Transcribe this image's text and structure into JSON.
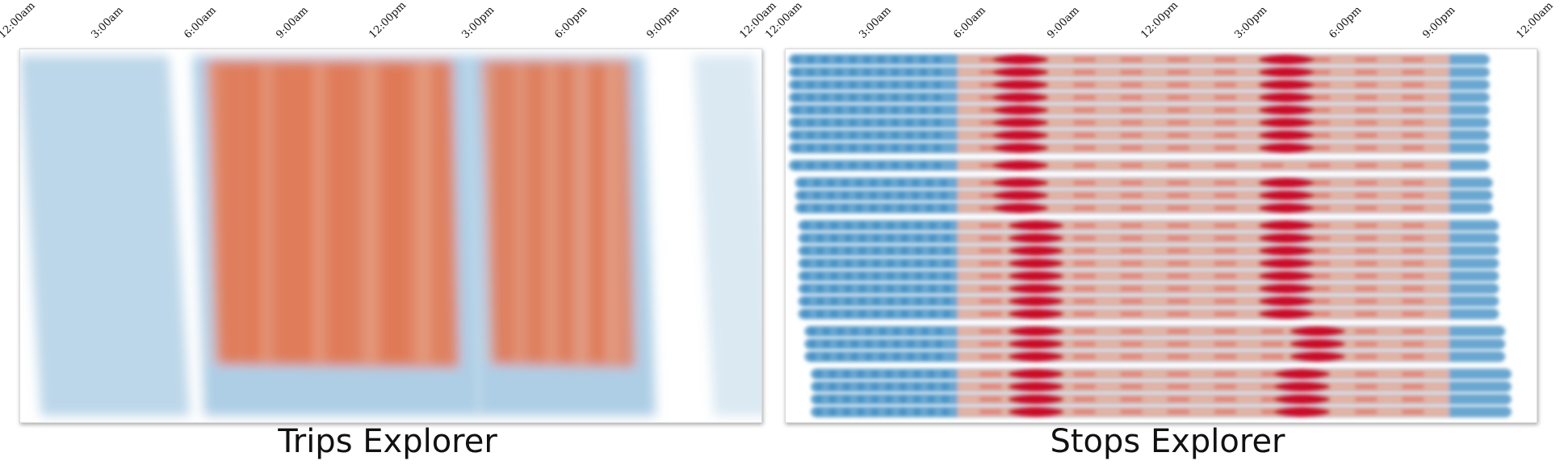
{
  "chart_data": [
    {
      "type": "heatmap",
      "title": "Trips Explorer",
      "x_tick_labels": [
        "12:00am",
        "3:00am",
        "6:00am",
        "9:00am",
        "12:00pm",
        "3:00pm",
        "6:00pm",
        "9:00pm",
        "12:00am"
      ],
      "x_range_hours": [
        0,
        24
      ],
      "color_scale": {
        "low": "#6aa6cf",
        "mid": "#f3f6f9",
        "high": "#e8784f"
      },
      "bands": [
        {
          "start_hour": 0.2,
          "end_hour": 4.6,
          "intensity": -0.45
        },
        {
          "start_hour": 5.8,
          "end_hour": 14.3,
          "intensity": 0.85
        },
        {
          "start_hour": 14.7,
          "end_hour": 20.0,
          "intensity": 0.75
        },
        {
          "start_hour": 22.0,
          "end_hour": 23.6,
          "intensity": -0.25
        }
      ]
    },
    {
      "type": "heatmap",
      "title": "Stops Explorer",
      "x_tick_labels": [
        "12:00am",
        "3:00am",
        "6:00am",
        "9:00am",
        "12:00pm",
        "3:00pm",
        "6:00pm",
        "9:00pm",
        "12:00am"
      ],
      "x_range_hours": [
        0,
        24
      ],
      "color_scale": {
        "low": "#4f97c8",
        "mid": "#f0b5a0",
        "high": "#c8001e"
      },
      "row_groups": [
        {
          "rows": 8,
          "start_hour": 0.1,
          "end_hour": 22.5,
          "peak_hours": [
            7.5,
            16.0
          ]
        },
        {
          "rows": 1,
          "start_hour": 0.1,
          "end_hour": 22.5,
          "peak_hours": [
            7.5
          ]
        },
        {
          "rows": 3,
          "start_hour": 0.3,
          "end_hour": 22.6,
          "peak_hours": [
            7.5,
            16.0
          ]
        },
        {
          "rows": 8,
          "start_hour": 0.4,
          "end_hour": 22.8,
          "peak_hours": [
            8.0,
            16.0
          ]
        },
        {
          "rows": 3,
          "start_hour": 0.6,
          "end_hour": 23.0,
          "peak_hours": [
            8.0,
            17.0
          ]
        },
        {
          "rows": 4,
          "start_hour": 0.8,
          "end_hour": 23.2,
          "peak_hours": [
            8.0,
            16.5
          ]
        }
      ]
    }
  ]
}
